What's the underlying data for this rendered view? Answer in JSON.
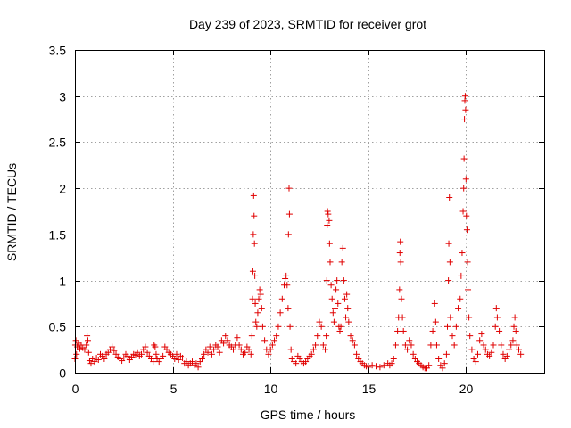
{
  "chart_data": {
    "type": "scatter",
    "title": "Day 239 of 2023, SRMTID for receiver grot",
    "xlabel": "GPS time / hours",
    "ylabel": "SRMTID / TECUs",
    "xlim": [
      0,
      24
    ],
    "ylim": [
      0,
      3.5
    ],
    "x_ticks": [
      0,
      5,
      10,
      15,
      20
    ],
    "x_tick_labels": [
      "0",
      "5",
      "10",
      "15",
      "20"
    ],
    "y_ticks": [
      0,
      0.5,
      1,
      1.5,
      2,
      2.5,
      3,
      3.5
    ],
    "y_tick_labels": [
      "0",
      "0.5",
      "1",
      "1.5",
      "2",
      "2.5",
      "3",
      "3.5"
    ],
    "grid": true,
    "marker": "+",
    "color": "#e00000",
    "series": [
      {
        "name": "SRMTID",
        "points": [
          [
            0.0,
            0.15
          ],
          [
            0.02,
            0.3
          ],
          [
            0.05,
            0.35
          ],
          [
            0.08,
            0.2
          ],
          [
            0.12,
            0.28
          ],
          [
            0.18,
            0.32
          ],
          [
            0.25,
            0.26
          ],
          [
            0.32,
            0.3
          ],
          [
            0.4,
            0.27
          ],
          [
            0.5,
            0.25
          ],
          [
            0.58,
            0.3
          ],
          [
            0.62,
            0.4
          ],
          [
            0.66,
            0.35
          ],
          [
            0.7,
            0.22
          ],
          [
            0.75,
            0.13
          ],
          [
            0.82,
            0.1
          ],
          [
            0.9,
            0.15
          ],
          [
            1.0,
            0.12
          ],
          [
            1.1,
            0.16
          ],
          [
            1.2,
            0.14
          ],
          [
            1.3,
            0.2
          ],
          [
            1.4,
            0.18
          ],
          [
            1.5,
            0.15
          ],
          [
            1.6,
            0.2
          ],
          [
            1.7,
            0.22
          ],
          [
            1.8,
            0.25
          ],
          [
            1.9,
            0.28
          ],
          [
            2.0,
            0.24
          ],
          [
            2.1,
            0.2
          ],
          [
            2.2,
            0.17
          ],
          [
            2.3,
            0.15
          ],
          [
            2.4,
            0.13
          ],
          [
            2.5,
            0.16
          ],
          [
            2.6,
            0.2
          ],
          [
            2.7,
            0.18
          ],
          [
            2.8,
            0.14
          ],
          [
            2.9,
            0.17
          ],
          [
            3.0,
            0.2
          ],
          [
            3.1,
            0.19
          ],
          [
            3.2,
            0.22
          ],
          [
            3.3,
            0.18
          ],
          [
            3.4,
            0.2
          ],
          [
            3.5,
            0.25
          ],
          [
            3.6,
            0.28
          ],
          [
            3.7,
            0.22
          ],
          [
            3.8,
            0.18
          ],
          [
            3.9,
            0.15
          ],
          [
            4.0,
            0.12
          ],
          [
            4.05,
            0.3
          ],
          [
            4.1,
            0.28
          ],
          [
            4.15,
            0.2
          ],
          [
            4.2,
            0.15
          ],
          [
            4.3,
            0.12
          ],
          [
            4.4,
            0.15
          ],
          [
            4.5,
            0.18
          ],
          [
            4.6,
            0.28
          ],
          [
            4.7,
            0.25
          ],
          [
            4.8,
            0.22
          ],
          [
            4.9,
            0.2
          ],
          [
            5.0,
            0.18
          ],
          [
            5.1,
            0.15
          ],
          [
            5.2,
            0.2
          ],
          [
            5.3,
            0.14
          ],
          [
            5.4,
            0.18
          ],
          [
            5.5,
            0.16
          ],
          [
            5.6,
            0.1
          ],
          [
            5.7,
            0.12
          ],
          [
            5.8,
            0.08
          ],
          [
            5.9,
            0.1
          ],
          [
            6.0,
            0.12
          ],
          [
            6.1,
            0.08
          ],
          [
            6.2,
            0.1
          ],
          [
            6.3,
            0.06
          ],
          [
            6.4,
            0.12
          ],
          [
            6.5,
            0.15
          ],
          [
            6.6,
            0.2
          ],
          [
            6.7,
            0.25
          ],
          [
            6.8,
            0.22
          ],
          [
            6.9,
            0.28
          ],
          [
            7.0,
            0.2
          ],
          [
            7.1,
            0.25
          ],
          [
            7.2,
            0.3
          ],
          [
            7.3,
            0.28
          ],
          [
            7.4,
            0.22
          ],
          [
            7.5,
            0.35
          ],
          [
            7.6,
            0.32
          ],
          [
            7.7,
            0.4
          ],
          [
            7.8,
            0.35
          ],
          [
            7.9,
            0.3
          ],
          [
            8.0,
            0.28
          ],
          [
            8.1,
            0.25
          ],
          [
            8.2,
            0.3
          ],
          [
            8.3,
            0.38
          ],
          [
            8.4,
            0.3
          ],
          [
            8.5,
            0.25
          ],
          [
            8.6,
            0.2
          ],
          [
            8.7,
            0.22
          ],
          [
            8.8,
            0.28
          ],
          [
            8.9,
            0.25
          ],
          [
            9.0,
            0.2
          ],
          [
            9.05,
            0.4
          ],
          [
            9.08,
            0.8
          ],
          [
            9.1,
            1.1
          ],
          [
            9.12,
            1.5
          ],
          [
            9.14,
            1.92
          ],
          [
            9.16,
            1.7
          ],
          [
            9.18,
            1.4
          ],
          [
            9.2,
            1.05
          ],
          [
            9.22,
            0.75
          ],
          [
            9.25,
            0.55
          ],
          [
            9.3,
            0.5
          ],
          [
            9.35,
            0.65
          ],
          [
            9.4,
            0.8
          ],
          [
            9.45,
            0.9
          ],
          [
            9.5,
            0.85
          ],
          [
            9.55,
            0.7
          ],
          [
            9.6,
            0.5
          ],
          [
            9.7,
            0.35
          ],
          [
            9.8,
            0.25
          ],
          [
            9.9,
            0.2
          ],
          [
            10.0,
            0.25
          ],
          [
            10.1,
            0.3
          ],
          [
            10.2,
            0.35
          ],
          [
            10.3,
            0.4
          ],
          [
            10.4,
            0.5
          ],
          [
            10.5,
            0.65
          ],
          [
            10.6,
            0.8
          ],
          [
            10.7,
            0.95
          ],
          [
            10.75,
            1.02
          ],
          [
            10.8,
            1.05
          ],
          [
            10.85,
            0.95
          ],
          [
            10.9,
            0.7
          ],
          [
            10.92,
            1.5
          ],
          [
            10.95,
            2.0
          ],
          [
            10.97,
            1.72
          ],
          [
            11.0,
            0.5
          ],
          [
            11.05,
            0.25
          ],
          [
            11.1,
            0.15
          ],
          [
            11.2,
            0.12
          ],
          [
            11.3,
            0.1
          ],
          [
            11.4,
            0.18
          ],
          [
            11.5,
            0.15
          ],
          [
            11.6,
            0.12
          ],
          [
            11.7,
            0.1
          ],
          [
            11.8,
            0.12
          ],
          [
            11.9,
            0.15
          ],
          [
            12.0,
            0.18
          ],
          [
            12.1,
            0.2
          ],
          [
            12.2,
            0.25
          ],
          [
            12.3,
            0.3
          ],
          [
            12.4,
            0.4
          ],
          [
            12.5,
            0.55
          ],
          [
            12.6,
            0.5
          ],
          [
            12.7,
            0.3
          ],
          [
            12.8,
            0.25
          ],
          [
            12.85,
            0.4
          ],
          [
            12.88,
            1.0
          ],
          [
            12.9,
            1.6
          ],
          [
            12.92,
            1.75
          ],
          [
            12.95,
            1.72
          ],
          [
            13.0,
            1.65
          ],
          [
            13.02,
            1.4
          ],
          [
            13.05,
            1.2
          ],
          [
            13.1,
            0.95
          ],
          [
            13.15,
            0.8
          ],
          [
            13.2,
            0.65
          ],
          [
            13.25,
            0.55
          ],
          [
            13.3,
            0.7
          ],
          [
            13.35,
            0.9
          ],
          [
            13.4,
            1.0
          ],
          [
            13.45,
            0.75
          ],
          [
            13.5,
            0.5
          ],
          [
            13.55,
            0.45
          ],
          [
            13.6,
            0.5
          ],
          [
            13.65,
            1.2
          ],
          [
            13.7,
            1.35
          ],
          [
            13.75,
            1.0
          ],
          [
            13.8,
            0.8
          ],
          [
            13.85,
            0.6
          ],
          [
            13.9,
            0.85
          ],
          [
            13.95,
            0.7
          ],
          [
            14.0,
            0.55
          ],
          [
            14.1,
            0.4
          ],
          [
            14.2,
            0.35
          ],
          [
            14.3,
            0.3
          ],
          [
            14.4,
            0.2
          ],
          [
            14.5,
            0.15
          ],
          [
            14.6,
            0.12
          ],
          [
            14.7,
            0.1
          ],
          [
            14.8,
            0.08
          ],
          [
            14.9,
            0.07
          ],
          [
            15.0,
            0.06
          ],
          [
            15.2,
            0.08
          ],
          [
            15.4,
            0.07
          ],
          [
            15.6,
            0.06
          ],
          [
            15.8,
            0.08
          ],
          [
            16.0,
            0.1
          ],
          [
            16.1,
            0.08
          ],
          [
            16.2,
            0.1
          ],
          [
            16.3,
            0.15
          ],
          [
            16.4,
            0.3
          ],
          [
            16.5,
            0.45
          ],
          [
            16.55,
            0.6
          ],
          [
            16.6,
            0.9
          ],
          [
            16.62,
            1.3
          ],
          [
            16.64,
            1.42
          ],
          [
            16.66,
            1.2
          ],
          [
            16.7,
            0.8
          ],
          [
            16.75,
            0.6
          ],
          [
            16.8,
            0.45
          ],
          [
            16.9,
            0.3
          ],
          [
            17.0,
            0.25
          ],
          [
            17.1,
            0.35
          ],
          [
            17.2,
            0.3
          ],
          [
            17.3,
            0.2
          ],
          [
            17.4,
            0.15
          ],
          [
            17.5,
            0.12
          ],
          [
            17.6,
            0.1
          ],
          [
            17.7,
            0.08
          ],
          [
            17.8,
            0.06
          ],
          [
            17.9,
            0.05
          ],
          [
            18.0,
            0.05
          ],
          [
            18.1,
            0.08
          ],
          [
            18.2,
            0.3
          ],
          [
            18.3,
            0.45
          ],
          [
            18.4,
            0.75
          ],
          [
            18.45,
            0.55
          ],
          [
            18.5,
            0.3
          ],
          [
            18.6,
            0.15
          ],
          [
            18.7,
            0.08
          ],
          [
            18.8,
            0.05
          ],
          [
            18.9,
            0.1
          ],
          [
            19.0,
            0.2
          ],
          [
            19.05,
            0.5
          ],
          [
            19.1,
            1.0
          ],
          [
            19.12,
            1.4
          ],
          [
            19.15,
            1.9
          ],
          [
            19.18,
            1.2
          ],
          [
            19.2,
            0.6
          ],
          [
            19.3,
            0.4
          ],
          [
            19.4,
            0.3
          ],
          [
            19.5,
            0.5
          ],
          [
            19.6,
            0.7
          ],
          [
            19.7,
            0.8
          ],
          [
            19.75,
            1.05
          ],
          [
            19.8,
            1.3
          ],
          [
            19.85,
            1.75
          ],
          [
            19.88,
            2.0
          ],
          [
            19.9,
            2.32
          ],
          [
            19.92,
            2.75
          ],
          [
            19.94,
            2.95
          ],
          [
            19.96,
            3.0
          ],
          [
            19.98,
            2.85
          ],
          [
            20.0,
            2.1
          ],
          [
            20.02,
            1.7
          ],
          [
            20.05,
            1.55
          ],
          [
            20.08,
            1.2
          ],
          [
            20.1,
            0.9
          ],
          [
            20.15,
            0.6
          ],
          [
            20.2,
            0.4
          ],
          [
            20.3,
            0.25
          ],
          [
            20.4,
            0.15
          ],
          [
            20.5,
            0.12
          ],
          [
            20.6,
            0.2
          ],
          [
            20.7,
            0.35
          ],
          [
            20.8,
            0.42
          ],
          [
            20.9,
            0.3
          ],
          [
            21.0,
            0.25
          ],
          [
            21.1,
            0.2
          ],
          [
            21.2,
            0.18
          ],
          [
            21.3,
            0.22
          ],
          [
            21.4,
            0.3
          ],
          [
            21.5,
            0.5
          ],
          [
            21.55,
            0.7
          ],
          [
            21.6,
            0.6
          ],
          [
            21.7,
            0.45
          ],
          [
            21.8,
            0.3
          ],
          [
            21.9,
            0.2
          ],
          [
            22.0,
            0.15
          ],
          [
            22.1,
            0.18
          ],
          [
            22.2,
            0.25
          ],
          [
            22.3,
            0.3
          ],
          [
            22.4,
            0.35
          ],
          [
            22.45,
            0.5
          ],
          [
            22.5,
            0.6
          ],
          [
            22.55,
            0.45
          ],
          [
            22.6,
            0.3
          ],
          [
            22.7,
            0.25
          ],
          [
            22.8,
            0.2
          ]
        ]
      }
    ]
  }
}
